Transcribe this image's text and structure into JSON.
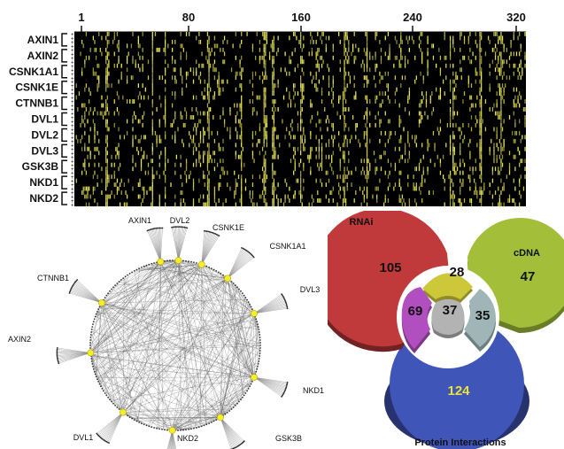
{
  "chart_data": [
    {
      "type": "heatmap",
      "title": "",
      "x_ticks": [
        "1",
        "80",
        "160",
        "240",
        "320"
      ],
      "x_range": [
        1,
        320
      ],
      "genes": [
        "AXIN1",
        "AXIN2",
        "CSNK1A1",
        "CSNK1E",
        "CTNNB1",
        "DVL1",
        "DVL2",
        "DVL3",
        "GSK3B",
        "NKD1",
        "NKD2"
      ],
      "colors": {
        "background": "#000000",
        "hit": "#f2ef5a",
        "frame": "#111111"
      }
    },
    {
      "type": "network",
      "nodes": [
        "AXIN1",
        "DVL2",
        "CSNK1E",
        "CSNK1A1",
        "DVL3",
        "NKD1",
        "GSK3B",
        "NKD2",
        "DVL1",
        "AXIN2",
        "CTNNB1"
      ],
      "colors": {
        "node": "#f5ee2a",
        "edge": "#555555"
      }
    },
    {
      "type": "venn",
      "sets": [
        "RNAi",
        "cDNA",
        "Protein Interactions"
      ],
      "regions": [
        {
          "id": "rnai_only",
          "value": 105,
          "color": "#c0393b"
        },
        {
          "id": "rnai_cdna",
          "value": 28,
          "color": "#cdc83a"
        },
        {
          "id": "cdna_only",
          "value": 47,
          "color": "#a3bf3a"
        },
        {
          "id": "rnai_protein",
          "value": 69,
          "color": "#b24fc0"
        },
        {
          "id": "all_three",
          "value": 37,
          "color": "#b3b3b3"
        },
        {
          "id": "cdna_protein",
          "value": 35,
          "color": "#9fb5b7"
        },
        {
          "id": "protein_only",
          "value": 124,
          "color": "#3f55b8"
        }
      ]
    }
  ]
}
